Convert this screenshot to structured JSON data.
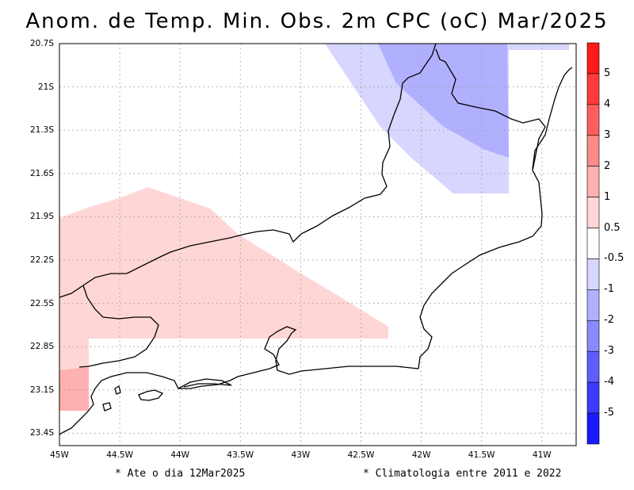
{
  "title": "Anom. de Temp. Min. Obs. 2m CPC (oC) Mar/2025",
  "lat_labels": [
    "20.7S",
    "21S",
    "21.3S",
    "21.6S",
    "21.9S",
    "22.2S",
    "22.5S",
    "22.8S",
    "23.1S",
    "23.4S"
  ],
  "lon_labels": [
    "45W",
    "44.5W",
    "44W",
    "43.5W",
    "43W",
    "42.5W",
    "42W",
    "41.5W",
    "41W"
  ],
  "colorbar": {
    "labels": [
      "5",
      "4",
      "3",
      "2",
      "1",
      "0.5",
      "-0.5",
      "-1",
      "-2",
      "-3",
      "-4",
      "-5"
    ],
    "colors": [
      "#ff1a1a",
      "#ff3b3b",
      "#ff5e5e",
      "#ff8a8a",
      "#ffb0b0",
      "#ffd6d6",
      "#ffffff",
      "#d6d6ff",
      "#b0b0ff",
      "#8a8aff",
      "#5e5eff",
      "#3b3bff",
      "#1a1aff"
    ]
  },
  "notes": {
    "left": "* Ate o dia 12Mar2025",
    "right": "* Climatologia entre 2011 e 2022"
  },
  "legend_colors": {
    "pos_0_5_1": "#ffd6d6",
    "pos_1_2": "#ffb0b0",
    "neg_0_5_1": "#d6d6ff",
    "neg_1_2": "#b0b0ff"
  }
}
